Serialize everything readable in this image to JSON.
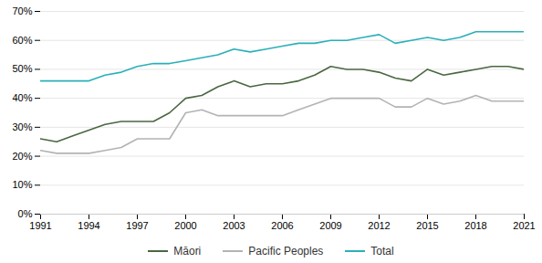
{
  "chart_data": {
    "type": "line",
    "x": [
      1991,
      1992,
      1993,
      1994,
      1995,
      1996,
      1997,
      1998,
      1999,
      2000,
      2001,
      2002,
      2003,
      2004,
      2005,
      2006,
      2007,
      2008,
      2009,
      2010,
      2011,
      2012,
      2013,
      2014,
      2015,
      2016,
      2017,
      2018,
      2019,
      2020,
      2021
    ],
    "series": [
      {
        "name": "Māori",
        "color": "#4a6741",
        "values": [
          0.26,
          0.25,
          0.27,
          0.29,
          0.31,
          0.32,
          0.32,
          0.32,
          0.35,
          0.4,
          0.41,
          0.44,
          0.46,
          0.44,
          0.45,
          0.45,
          0.46,
          0.48,
          0.51,
          0.5,
          0.5,
          0.49,
          0.47,
          0.46,
          0.5,
          0.48,
          0.49,
          0.5,
          0.51,
          0.51,
          0.5
        ]
      },
      {
        "name": "Pacific Peoples",
        "color": "#b3b3b3",
        "values": [
          0.22,
          0.21,
          0.21,
          0.21,
          0.22,
          0.23,
          0.26,
          0.26,
          0.26,
          0.35,
          0.36,
          0.34,
          0.34,
          0.34,
          0.34,
          0.34,
          0.36,
          0.38,
          0.4,
          0.4,
          0.4,
          0.4,
          0.37,
          0.37,
          0.4,
          0.38,
          0.39,
          0.41,
          0.39,
          0.39,
          0.39
        ]
      },
      {
        "name": "Total",
        "color": "#2ab0b8",
        "values": [
          0.46,
          0.46,
          0.46,
          0.46,
          0.48,
          0.49,
          0.51,
          0.52,
          0.52,
          0.53,
          0.54,
          0.55,
          0.57,
          0.56,
          0.57,
          0.58,
          0.59,
          0.59,
          0.6,
          0.6,
          0.61,
          0.62,
          0.59,
          0.6,
          0.61,
          0.6,
          0.61,
          0.63,
          0.63,
          0.63,
          0.63
        ]
      }
    ],
    "xlim": [
      1991,
      2021
    ],
    "xticks": [
      1991,
      1994,
      1997,
      2000,
      2003,
      2006,
      2009,
      2012,
      2015,
      2018,
      2021
    ],
    "ylim": [
      0.0,
      0.7
    ],
    "yticks": [
      {
        "value": 0.0,
        "label": "0%"
      },
      {
        "value": 0.1,
        "label": "10%"
      },
      {
        "value": 0.2,
        "label": "20%"
      },
      {
        "value": 0.3,
        "label": "30%"
      },
      {
        "value": 0.4,
        "label": "40%"
      },
      {
        "value": 0.5,
        "label": "50%"
      },
      {
        "value": 0.6,
        "label": "60%"
      },
      {
        "value": 0.7,
        "label": "70%"
      }
    ],
    "grid": true,
    "legend": "bottom"
  }
}
